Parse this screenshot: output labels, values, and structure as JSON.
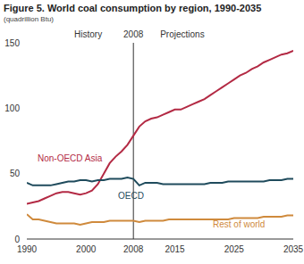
{
  "chart_data": {
    "type": "line",
    "title": "Figure 5. World coal consumption by region, 1990-2035",
    "subtitle": "(quadrillion Btu)",
    "x": [
      1990,
      1991,
      1992,
      1993,
      1994,
      1995,
      1996,
      1997,
      1998,
      1999,
      2000,
      2001,
      2002,
      2003,
      2004,
      2005,
      2006,
      2007,
      2008,
      2009,
      2010,
      2011,
      2012,
      2013,
      2014,
      2015,
      2016,
      2017,
      2018,
      2019,
      2020,
      2021,
      2022,
      2023,
      2024,
      2025,
      2026,
      2027,
      2028,
      2029,
      2030,
      2031,
      2032,
      2033,
      2034,
      2035
    ],
    "series": [
      {
        "name": "Non-OECD Asia",
        "color": "#b32a44",
        "values": [
          27,
          28,
          29,
          31,
          33,
          35,
          36,
          36,
          35,
          34,
          35,
          37,
          42,
          50,
          58,
          63,
          67,
          72,
          79,
          86,
          90,
          92,
          93,
          95,
          97,
          99,
          99,
          101,
          103,
          105,
          107,
          110,
          113,
          116,
          119,
          122,
          125,
          127,
          130,
          132,
          135,
          137,
          139,
          141,
          142,
          144
        ]
      },
      {
        "name": "OECD",
        "color": "#1f4b5c",
        "values": [
          43,
          41,
          41,
          41,
          41,
          42,
          43,
          44,
          44,
          45,
          45,
          44,
          45,
          45,
          46,
          46,
          46,
          47,
          46,
          41,
          43,
          43,
          43,
          42,
          42,
          42,
          42,
          42,
          42,
          42,
          42,
          43,
          43,
          43,
          44,
          44,
          44,
          44,
          44,
          44,
          44,
          45,
          45,
          45,
          46,
          46
        ]
      },
      {
        "name": "Rest of world",
        "color": "#cf8a3c",
        "values": [
          19,
          15,
          15,
          14,
          13,
          12,
          12,
          12,
          12,
          11,
          12,
          13,
          13,
          13,
          14,
          14,
          14,
          14,
          14,
          13,
          14,
          14,
          14,
          14,
          15,
          15,
          15,
          15,
          15,
          15,
          15,
          15,
          15,
          15,
          15,
          16,
          16,
          16,
          16,
          16,
          17,
          17,
          17,
          17,
          18,
          18
        ]
      }
    ],
    "xlim": [
      1990,
      2035
    ],
    "xticks": [
      1990,
      2000,
      2008,
      2015,
      2025,
      2035
    ],
    "ylim": [
      0,
      150
    ],
    "yticks": [
      0,
      50,
      100,
      150
    ],
    "grid": false,
    "divider": {
      "x": 2008,
      "label": "2008",
      "left": "History",
      "right": "Projections"
    }
  }
}
